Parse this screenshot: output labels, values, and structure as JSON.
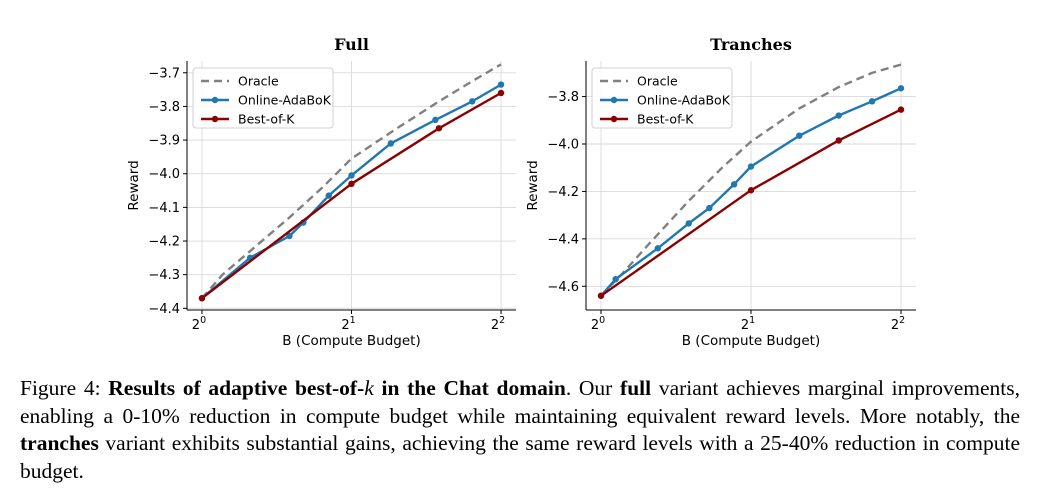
{
  "chart_data": [
    {
      "type": "line",
      "title": "Full",
      "xlabel": "B (Compute Budget)",
      "ylabel": "Reward",
      "x_scale": "log2",
      "xlim": [
        1,
        4
      ],
      "ylim": [
        -4.405,
        -3.665
      ],
      "xticks": [
        {
          "value": 1,
          "base": "2",
          "exp": "0"
        },
        {
          "value": 2,
          "base": "2",
          "exp": "1"
        },
        {
          "value": 4,
          "base": "2",
          "exp": "2"
        }
      ],
      "yticks": [
        {
          "value": -3.7,
          "label": "−3.7"
        },
        {
          "value": -3.8,
          "label": "−3.8"
        },
        {
          "value": -3.9,
          "label": "−3.9"
        },
        {
          "value": -4.0,
          "label": "−4.0"
        },
        {
          "value": -4.1,
          "label": "−4.1"
        },
        {
          "value": -4.2,
          "label": "−4.2"
        },
        {
          "value": -4.3,
          "label": "−4.3"
        },
        {
          "value": -4.4,
          "label": "−4.4"
        }
      ],
      "grid": true,
      "legend_position": "top-left",
      "series": [
        {
          "name": "Oracle",
          "style": "dashed",
          "color": "#808080",
          "markers": false,
          "x": [
            1,
            1.1,
            1.25,
            1.5,
            1.75,
            2,
            2.5,
            3,
            3.5,
            4
          ],
          "y": [
            -4.37,
            -4.3,
            -4.23,
            -4.13,
            -4.04,
            -3.955,
            -3.86,
            -3.785,
            -3.725,
            -3.675
          ]
        },
        {
          "name": "Online-AdaBoK",
          "style": "solid",
          "color": "#1f77b4",
          "markers": true,
          "x": [
            1,
            1.25,
            1.5,
            1.6,
            1.8,
            2,
            2.4,
            2.95,
            3.5,
            4
          ],
          "y": [
            -4.37,
            -4.25,
            -4.185,
            -4.145,
            -4.065,
            -4.005,
            -3.91,
            -3.84,
            -3.785,
            -3.735
          ]
        },
        {
          "name": "Best-of-K",
          "style": "solid",
          "color": "#8b0000",
          "markers": true,
          "x": [
            1,
            2,
            3,
            4
          ],
          "y": [
            -4.37,
            -4.03,
            -3.865,
            -3.76
          ]
        }
      ]
    },
    {
      "type": "line",
      "title": "Tranches",
      "xlabel": "B (Compute Budget)",
      "ylabel": "Reward",
      "x_scale": "log2",
      "xlim": [
        1,
        4
      ],
      "ylim": [
        -4.7,
        -3.65
      ],
      "xticks": [
        {
          "value": 1,
          "base": "2",
          "exp": "0"
        },
        {
          "value": 2,
          "base": "2",
          "exp": "1"
        },
        {
          "value": 4,
          "base": "2",
          "exp": "2"
        }
      ],
      "yticks": [
        {
          "value": -3.8,
          "label": "−3.8"
        },
        {
          "value": -4.0,
          "label": "−4.0"
        },
        {
          "value": -4.2,
          "label": "−4.2"
        },
        {
          "value": -4.4,
          "label": "−4.4"
        },
        {
          "value": -4.6,
          "label": "−4.6"
        }
      ],
      "grid": true,
      "legend_position": "top-left",
      "series": [
        {
          "name": "Oracle",
          "style": "dashed",
          "color": "#808080",
          "markers": false,
          "x": [
            1,
            1.1,
            1.25,
            1.5,
            1.75,
            2,
            2.5,
            3,
            3.5,
            4
          ],
          "y": [
            -4.64,
            -4.55,
            -4.42,
            -4.24,
            -4.1,
            -3.99,
            -3.85,
            -3.76,
            -3.7,
            -3.665
          ]
        },
        {
          "name": "Online-AdaBoK",
          "style": "solid",
          "color": "#1f77b4",
          "markers": true,
          "x": [
            1,
            1.07,
            1.3,
            1.5,
            1.65,
            1.85,
            2,
            2.5,
            3,
            3.5,
            4
          ],
          "y": [
            -4.64,
            -4.57,
            -4.44,
            -4.335,
            -4.27,
            -4.17,
            -4.095,
            -3.965,
            -3.88,
            -3.82,
            -3.765
          ]
        },
        {
          "name": "Best-of-K",
          "style": "solid",
          "color": "#8b0000",
          "markers": true,
          "x": [
            1,
            2,
            3,
            4
          ],
          "y": [
            -4.64,
            -4.195,
            -3.985,
            -3.855
          ]
        }
      ]
    }
  ],
  "caption": {
    "prefix": "Figure 4: ",
    "bold_title_a": "Results of adaptive best-of-",
    "bold_title_k": "k",
    "bold_title_b": " in the Chat domain",
    "text1": ". Our ",
    "bold_full": "full",
    "text2": " variant achieves marginal improvements, enabling a 0-10% reduction in compute budget while maintaining equivalent reward levels. More notably, the ",
    "bold_tranches": "tranches",
    "text3": " variant exhibits substantial gains, achieving the same reward levels with a 25-40% reduction in compute budget."
  }
}
